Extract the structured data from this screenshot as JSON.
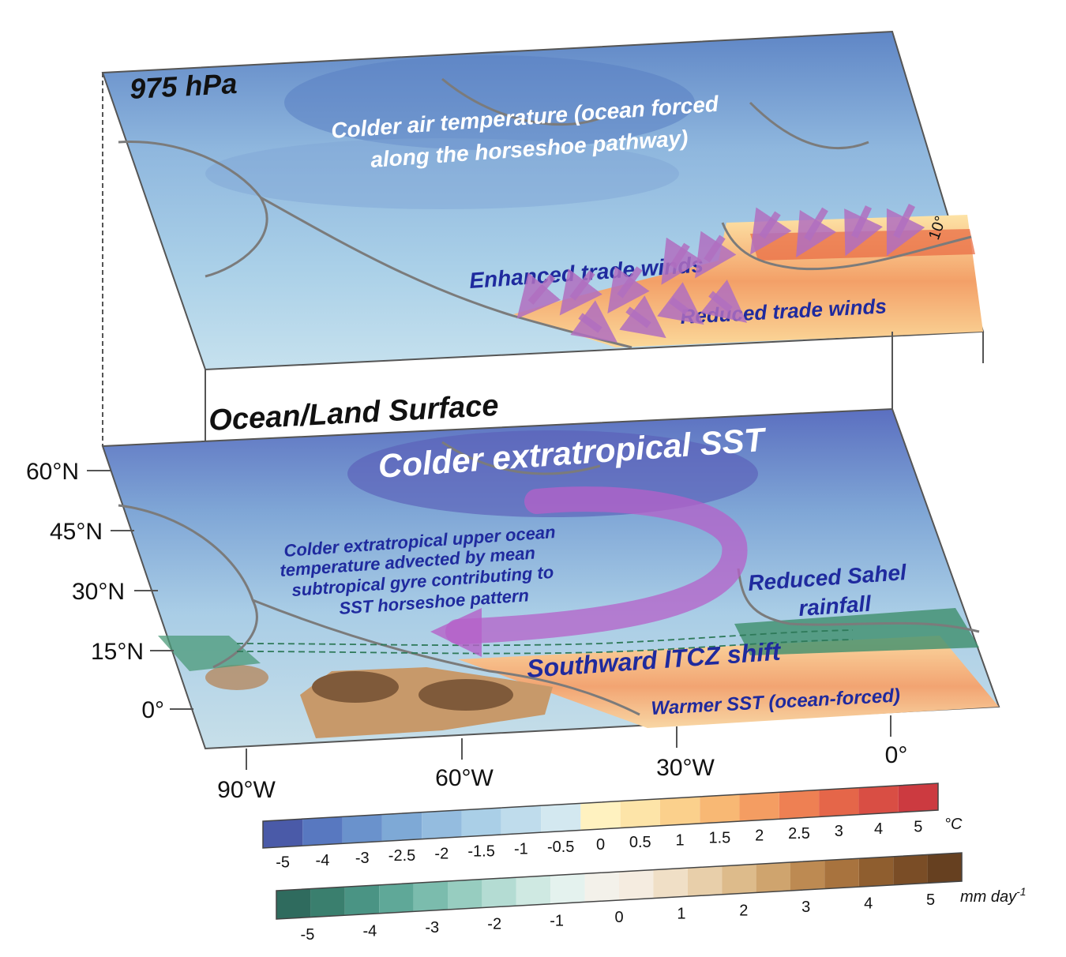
{
  "upper_panel": {
    "title": "975 hPa",
    "air_temp_label_line1": "Colder air temperature (ocean forced",
    "air_temp_label_line2": "along the horseshoe pathway)",
    "enhanced_trade_winds": "Enhanced trade winds",
    "reduced_trade_winds": "Reduced trade winds",
    "lat_mark": "10°"
  },
  "lower_panel": {
    "title": "Ocean/Land Surface",
    "colder_sst": "Colder extratropical SST",
    "gyre_line1": "Colder extratropical upper ocean",
    "gyre_line2": "temperature advected by mean",
    "gyre_line3": "subtropical gyre contributing to",
    "gyre_line4": "SST horseshoe pattern",
    "sahel_line1": "Reduced Sahel",
    "sahel_line2": "rainfall",
    "itcz": "Southward ITCZ shift",
    "warmer_sst": "Warmer SST (ocean-forced)"
  },
  "lat_axis": [
    "60°N",
    "45°N",
    "30°N",
    "15°N",
    "0°"
  ],
  "lon_axis": [
    "90°W",
    "60°W",
    "30°W",
    "0°"
  ],
  "temperature_colorbar": {
    "unit": "°C",
    "ticks": [
      "-5",
      "-4",
      "-3",
      "-2.5",
      "-2",
      "-1.5",
      "-1",
      "-0.5",
      "0",
      "0.5",
      "1",
      "1.5",
      "2",
      "2.5",
      "3",
      "4",
      "5"
    ],
    "colors": [
      "#4a5aa8",
      "#5878c0",
      "#6a92cc",
      "#7ea9d6",
      "#94bcdf",
      "#aacfe7",
      "#bfdcec",
      "#d3e8f0",
      "#fff2c0",
      "#fde4a8",
      "#fbd08c",
      "#f8b874",
      "#f49d62",
      "#ee8053",
      "#e56649",
      "#d94e44",
      "#cc3a40"
    ]
  },
  "precip_colorbar": {
    "unit": "mm day",
    "unit_exp": "-1",
    "ticks": [
      "-5",
      "-4",
      "-3",
      "-2",
      "-1",
      "0",
      "1",
      "2",
      "3",
      "4",
      "5"
    ],
    "colors": [
      "#2f6b5e",
      "#3a7f6e",
      "#4a9484",
      "#5fa898",
      "#7bbcad",
      "#97cdc0",
      "#b4dcd3",
      "#cfe9e2",
      "#e4f2ee",
      "#f3f1ea",
      "#f5ece0",
      "#f0dfc6",
      "#e8cfaa",
      "#ddbb8b",
      "#cfa46e",
      "#bd8a52",
      "#a8733e",
      "#8f5e2f",
      "#7a4d26",
      "#664020"
    ]
  }
}
